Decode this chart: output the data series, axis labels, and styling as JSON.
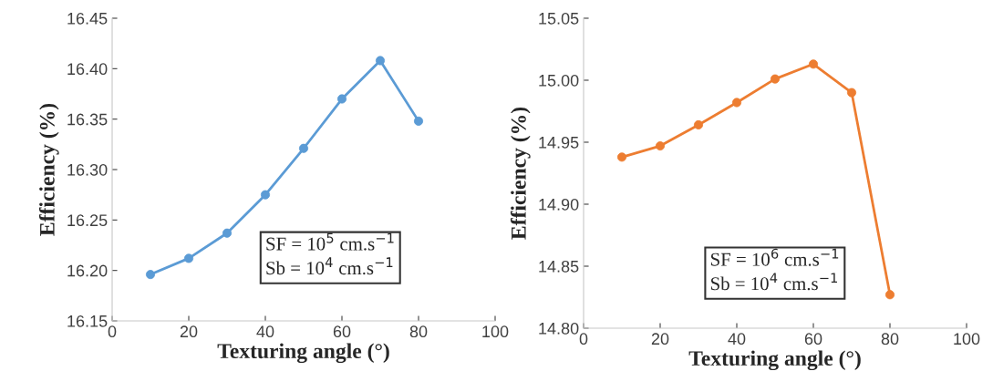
{
  "chart_data": [
    {
      "type": "line",
      "xlabel": "Texturing angle (°)",
      "ylabel": "Efficiency (%)",
      "x": [
        10,
        20,
        30,
        40,
        50,
        60,
        70,
        80
      ],
      "series": [
        {
          "color": "#5b9bd5",
          "values": [
            16.196,
            16.212,
            16.237,
            16.275,
            16.321,
            16.37,
            16.408,
            16.348
          ]
        }
      ],
      "xlim": [
        0,
        100
      ],
      "xticks": [
        0,
        20,
        40,
        60,
        80,
        100
      ],
      "ylim": [
        16.15,
        16.45
      ],
      "yticks": [
        16.15,
        {
          "value": 16.2,
          "label": "16.20"
        },
        16.25,
        {
          "value": 16.3,
          "label": "16.30"
        },
        16.35,
        {
          "value": 16.4,
          "label": "16.40"
        },
        16.45
      ],
      "marker": "circle",
      "grid": false,
      "annotations": [
        "SF = 10$^{5}$ cm.s$^{−1}$",
        "Sb = 10$^{4}$ cm.s$^{−1}$"
      ]
    },
    {
      "type": "line",
      "xlabel": "Texturing angle (°)",
      "ylabel": "Efficiency (%)",
      "x": [
        10,
        20,
        30,
        40,
        50,
        60,
        70,
        80
      ],
      "series": [
        {
          "color": "#ed7d31",
          "values": [
            14.938,
            14.947,
            14.964,
            14.982,
            15.001,
            15.013,
            14.99,
            14.827
          ]
        }
      ],
      "xlim": [
        0,
        100
      ],
      "xticks": [
        0,
        20,
        40,
        60,
        80,
        100
      ],
      "ylim": [
        14.8,
        15.05
      ],
      "yticks": [
        {
          "value": 14.8,
          "label": "14.80"
        },
        14.85,
        {
          "value": 14.9,
          "label": "14.90"
        },
        14.95,
        {
          "value": 15.0,
          "label": "15.00"
        },
        15.05
      ],
      "marker": "circle",
      "grid": false,
      "annotations": [
        "SF = 10$^{6}$ cm.s$^{−1}$",
        "Sb = 10$^{4}$ cm.s$^{−1}$"
      ]
    }
  ]
}
